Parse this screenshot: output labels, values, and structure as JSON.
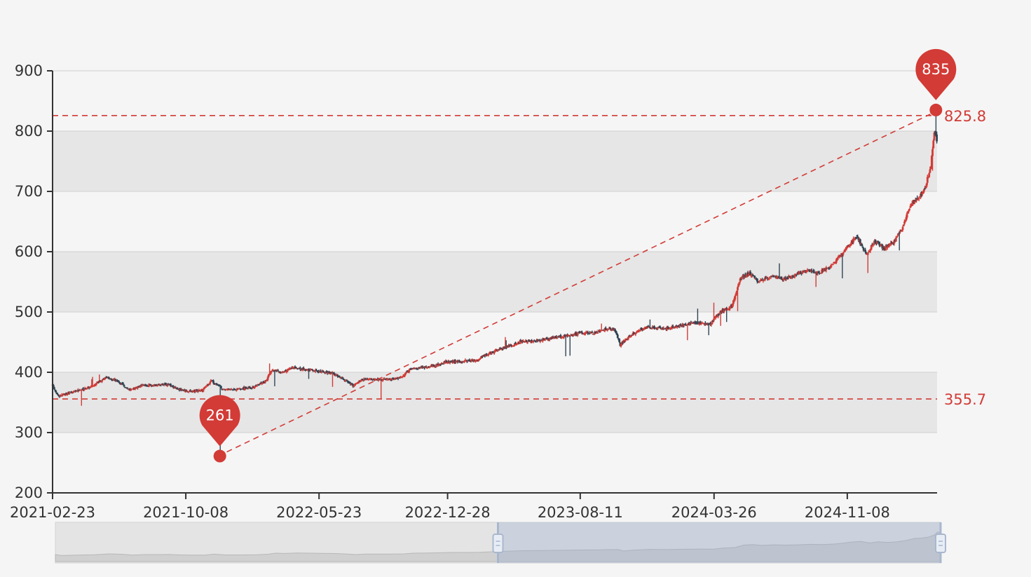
{
  "chart_data": {
    "type": "candlestick",
    "x_tick_labels": [
      "2021-02-23",
      "2021-10-08",
      "2022-05-23",
      "2022-12-28",
      "2023-08-11",
      "2024-03-26",
      "2024-11-08"
    ],
    "y_tick_labels": [
      "200",
      "300",
      "400",
      "500",
      "600",
      "700",
      "800",
      "900"
    ],
    "ylim": [
      200,
      900
    ],
    "x_start": "2021-02-23",
    "x_end": "2025-04-10",
    "grid": "horizontal split bands",
    "close_series": [
      [
        "2021-02-23",
        378
      ],
      [
        "2021-03-05",
        360
      ],
      [
        "2021-04-01",
        368
      ],
      [
        "2021-05-01",
        376
      ],
      [
        "2021-05-25",
        392
      ],
      [
        "2021-06-15",
        385
      ],
      [
        "2021-07-05",
        370
      ],
      [
        "2021-07-25",
        378
      ],
      [
        "2021-08-15",
        378
      ],
      [
        "2021-09-05",
        380
      ],
      [
        "2021-09-25",
        372
      ],
      [
        "2021-10-15",
        368
      ],
      [
        "2021-11-05",
        370
      ],
      [
        "2021-11-20",
        386
      ],
      [
        "2021-12-10",
        372
      ],
      [
        "2022-01-05",
        372
      ],
      [
        "2022-02-01",
        375
      ],
      [
        "2022-02-20",
        385
      ],
      [
        "2022-03-05",
        405
      ],
      [
        "2022-03-20",
        400
      ],
      [
        "2022-04-10",
        408
      ],
      [
        "2022-05-01",
        405
      ],
      [
        "2022-05-23",
        402
      ],
      [
        "2022-06-15",
        398
      ],
      [
        "2022-07-05",
        388
      ],
      [
        "2022-07-20",
        378
      ],
      [
        "2022-08-05",
        388
      ],
      [
        "2022-08-25",
        388
      ],
      [
        "2022-09-20",
        388
      ],
      [
        "2022-10-10",
        392
      ],
      [
        "2022-10-25",
        405
      ],
      [
        "2022-11-20",
        408
      ],
      [
        "2022-12-10",
        412
      ],
      [
        "2022-12-28",
        418
      ],
      [
        "2023-01-20",
        418
      ],
      [
        "2023-02-15",
        420
      ],
      [
        "2023-03-05",
        430
      ],
      [
        "2023-04-01",
        440
      ],
      [
        "2023-05-01",
        450
      ],
      [
        "2023-06-01",
        453
      ],
      [
        "2023-07-01",
        458
      ],
      [
        "2023-07-25",
        462
      ],
      [
        "2023-08-11",
        465
      ],
      [
        "2023-09-01",
        465
      ],
      [
        "2023-09-25",
        472
      ],
      [
        "2023-10-10",
        470
      ],
      [
        "2023-10-18",
        445
      ],
      [
        "2023-11-05",
        462
      ],
      [
        "2023-12-01",
        475
      ],
      [
        "2024-01-01",
        472
      ],
      [
        "2024-02-01",
        478
      ],
      [
        "2024-03-01",
        482
      ],
      [
        "2024-03-20",
        480
      ],
      [
        "2024-04-05",
        500
      ],
      [
        "2024-04-25",
        510
      ],
      [
        "2024-05-10",
        555
      ],
      [
        "2024-05-25",
        565
      ],
      [
        "2024-06-10",
        550
      ],
      [
        "2024-07-01",
        560
      ],
      [
        "2024-07-20",
        555
      ],
      [
        "2024-08-10",
        560
      ],
      [
        "2024-09-01",
        570
      ],
      [
        "2024-09-20",
        565
      ],
      [
        "2024-10-10",
        575
      ],
      [
        "2024-10-25",
        590
      ],
      [
        "2024-11-08",
        610
      ],
      [
        "2024-11-25",
        625
      ],
      [
        "2024-12-10",
        595
      ],
      [
        "2024-12-25",
        618
      ],
      [
        "2025-01-10",
        605
      ],
      [
        "2025-01-25",
        615
      ],
      [
        "2025-02-10",
        640
      ],
      [
        "2025-02-25",
        680
      ],
      [
        "2025-03-10",
        688
      ],
      [
        "2025-03-20",
        705
      ],
      [
        "2025-03-30",
        740
      ],
      [
        "2025-04-05",
        800
      ],
      [
        "2025-04-10",
        785
      ]
    ],
    "max_marker": {
      "value": "835",
      "date": "2025-04-08",
      "price": 835
    },
    "min_marker": {
      "value": "261",
      "date": "2021-12-05",
      "price": 261
    },
    "markline_high": {
      "label": "825.8",
      "value": 825.8
    },
    "markline_low": {
      "label": "355.7",
      "value": 355.7
    },
    "up_color": "#d23b36",
    "down_color": "#2f4554",
    "zoom_window": [
      0.5,
      1.0
    ]
  }
}
